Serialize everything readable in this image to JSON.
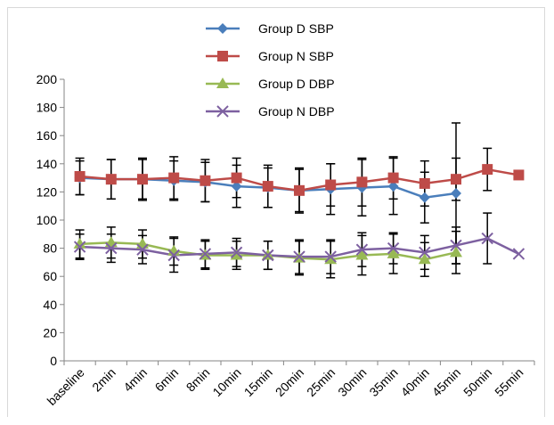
{
  "chart_data": {
    "type": "line",
    "title": "",
    "xlabel": "",
    "ylabel": "",
    "ylim": [
      0,
      200
    ],
    "yticks": [
      0,
      20,
      40,
      60,
      80,
      100,
      120,
      140,
      160,
      180,
      200
    ],
    "yticks_labels": [
      "0",
      "20",
      "40",
      "60",
      "80",
      "100",
      "120",
      "140",
      "160",
      "180",
      "200"
    ],
    "grid": false,
    "legend": "top-center",
    "categories": [
      "baseline",
      "2min",
      "4min",
      "6min",
      "8min",
      "10min",
      "15min",
      "20min",
      "25min",
      "30min",
      "35min",
      "40min",
      "45min",
      "50min",
      "55min"
    ],
    "series": [
      {
        "name": "Group D SBP",
        "color": "#4a7ebb",
        "marker": "diamond",
        "values": [
          130,
          129,
          129,
          128,
          127,
          124,
          123,
          121,
          122,
          123,
          124,
          116,
          119,
          null,
          null
        ],
        "errors": [
          12,
          14,
          14,
          14,
          14,
          15,
          14,
          15,
          18,
          20,
          20,
          18,
          50,
          null,
          null
        ]
      },
      {
        "name": "Group N SBP",
        "color": "#be4b48",
        "marker": "square",
        "values": [
          131,
          129,
          129,
          130,
          128,
          130,
          124,
          121,
          125,
          127,
          130,
          126,
          129,
          136,
          132
        ],
        "errors": [
          13,
          14,
          15,
          15,
          15,
          14,
          15,
          16,
          15,
          17,
          15,
          16,
          15,
          15,
          null
        ]
      },
      {
        "name": "Group D DBP",
        "color": "#98b954",
        "marker": "triangle",
        "values": [
          83,
          84,
          83,
          78,
          75,
          75,
          75,
          73,
          72,
          75,
          76,
          72,
          77,
          null,
          null
        ],
        "errors": [
          10,
          11,
          10,
          10,
          10,
          10,
          10,
          12,
          13,
          14,
          14,
          12,
          15,
          null,
          null
        ]
      },
      {
        "name": "Group N DBP",
        "color": "#7d60a0",
        "marker": "x",
        "values": [
          81,
          80,
          79,
          75,
          76,
          77,
          75,
          74,
          74,
          79,
          80,
          77,
          82,
          87,
          76
        ],
        "errors": [
          9,
          10,
          10,
          12,
          10,
          10,
          10,
          12,
          12,
          12,
          11,
          12,
          13,
          18,
          null
        ]
      }
    ]
  }
}
